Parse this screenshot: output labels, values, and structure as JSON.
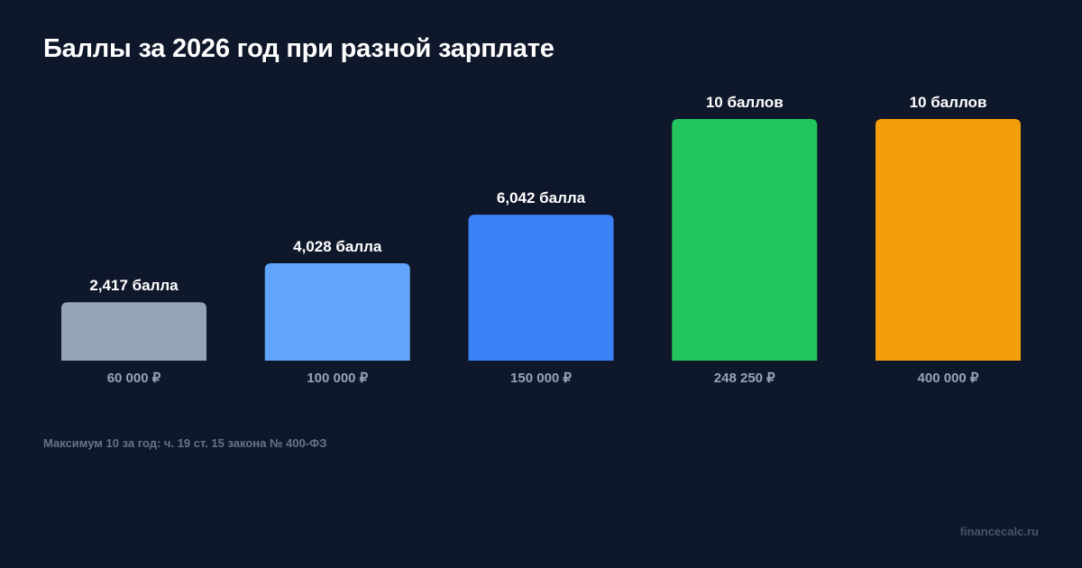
{
  "chart_data": {
    "type": "bar",
    "title": "Баллы за 2026 год при разной зарплате",
    "categories": [
      "60 000 ₽",
      "100 000 ₽",
      "150 000 ₽",
      "248 250 ₽",
      "400 000 ₽"
    ],
    "values": [
      2.417,
      4.028,
      6.042,
      10,
      10
    ],
    "data_labels": [
      "2,417 балла",
      "4,028 балла",
      "6,042 балла",
      "10 баллов",
      "10 баллов"
    ],
    "colors": [
      "#94a3b8",
      "#60a5fa",
      "#3b82f6",
      "#22c55e",
      "#f59e0b"
    ],
    "ylim": [
      0,
      10
    ],
    "grid": false,
    "xlabel": "",
    "ylabel": ""
  },
  "footnote": "Максимум 10 за год: ч. 19 ст. 15 закона № 400-ФЗ",
  "site": "financecalc.ru",
  "theme": {
    "background": "#0f172a",
    "title_color": "#ffffff",
    "label_color": "#ffffff",
    "category_color": "#94a3b8"
  }
}
